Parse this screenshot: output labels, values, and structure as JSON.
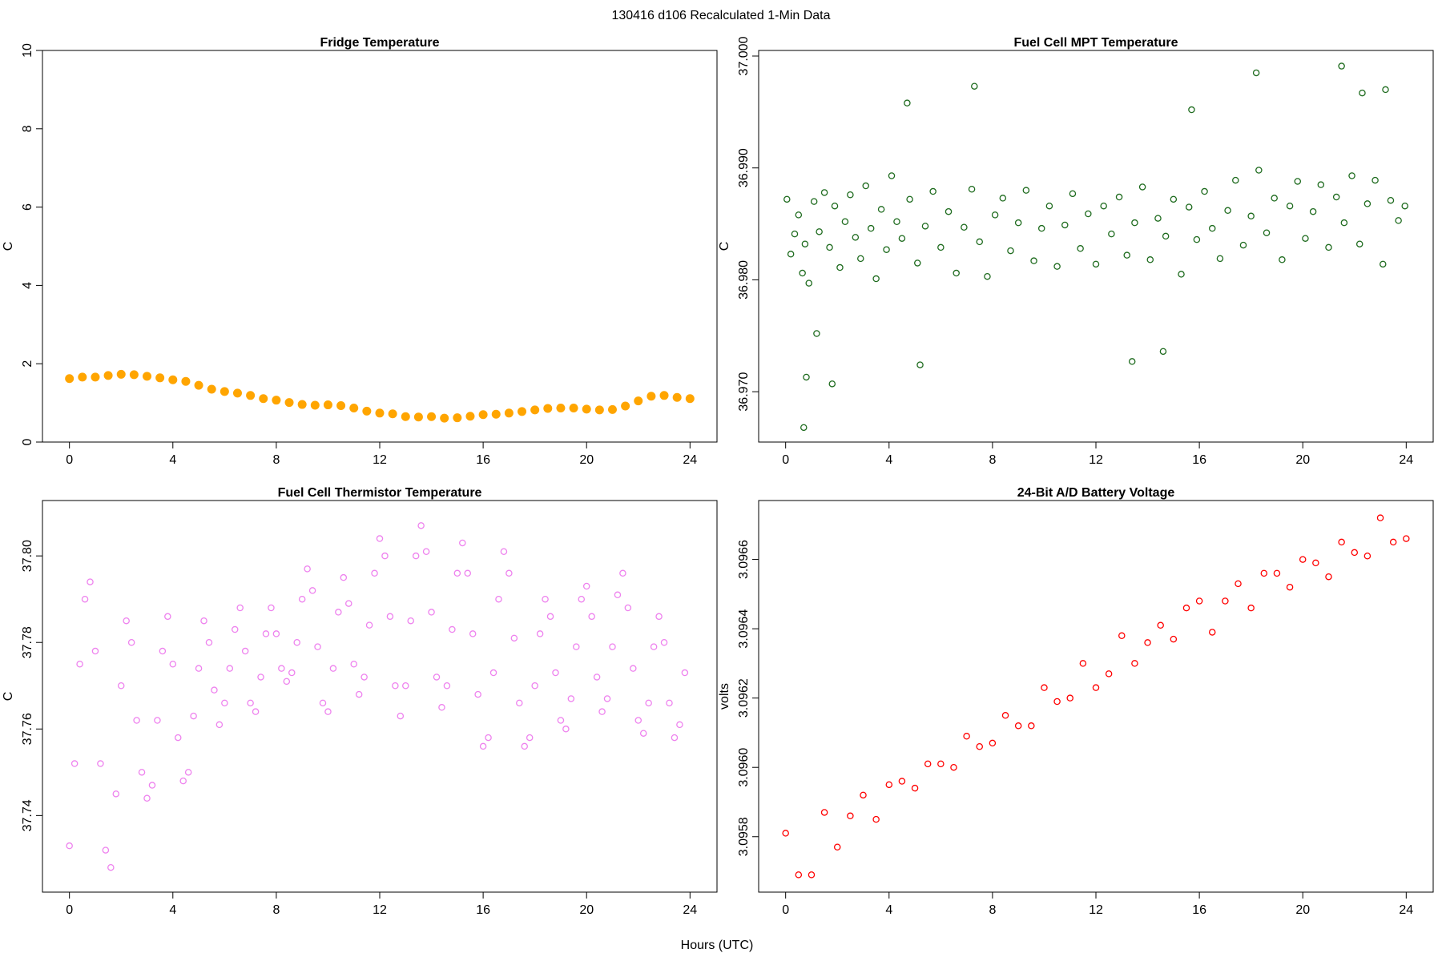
{
  "figure": {
    "title": "130416   d106   Recalculated 1-Min Data",
    "xlabel": "Hours (UTC)"
  },
  "chart_data": [
    {
      "type": "scatter",
      "title": "Fridge Temperature",
      "xlabel": "",
      "ylabel": "C",
      "xlim": [
        0,
        24
      ],
      "ylim": [
        0,
        10
      ],
      "xticks": [
        0,
        4,
        8,
        12,
        16,
        20,
        24
      ],
      "yticks": [
        0,
        2,
        4,
        6,
        8,
        10
      ],
      "yticklabels": [
        "0",
        "2",
        "4",
        "6",
        "8",
        "10"
      ],
      "color": "#FFA500",
      "marker": "filled",
      "series": [
        {
          "x": [
            0,
            0.5,
            1,
            1.5,
            2,
            2.5,
            3,
            3.5,
            4,
            4.5,
            5,
            5.5,
            6,
            6.5,
            7,
            7.5,
            8,
            8.5,
            9,
            9.5,
            10,
            10.5,
            11,
            11.5,
            12,
            12.5,
            13,
            13.5,
            14,
            14.5,
            15,
            15.5,
            16,
            16.5,
            17,
            17.5,
            18,
            18.5,
            19,
            19.5,
            20,
            20.5,
            21,
            21.5,
            22,
            22.5,
            23,
            23.5,
            24
          ],
          "y": [
            1.62,
            1.66,
            1.66,
            1.7,
            1.73,
            1.72,
            1.68,
            1.64,
            1.59,
            1.55,
            1.45,
            1.35,
            1.29,
            1.25,
            1.19,
            1.11,
            1.07,
            1.01,
            0.96,
            0.94,
            0.95,
            0.93,
            0.87,
            0.79,
            0.74,
            0.72,
            0.65,
            0.64,
            0.65,
            0.61,
            0.62,
            0.66,
            0.7,
            0.71,
            0.74,
            0.78,
            0.82,
            0.86,
            0.87,
            0.87,
            0.84,
            0.82,
            0.83,
            0.92,
            1.05,
            1.17,
            1.19,
            1.14,
            1.11
          ]
        }
      ]
    },
    {
      "type": "scatter",
      "title": "Fuel Cell MPT Temperature",
      "xlabel": "",
      "ylabel": "C",
      "xlim": [
        0,
        24
      ],
      "ylim": [
        36.9655,
        37.0005
      ],
      "xticks": [
        0,
        4,
        8,
        12,
        16,
        20,
        24
      ],
      "yticks": [
        36.97,
        36.98,
        36.99,
        37.0
      ],
      "yticklabels": [
        "36.970",
        "36.980",
        "36.990",
        "37.000"
      ],
      "color": "#1E6B1E",
      "marker": "open",
      "series": [
        {
          "x": [
            0.05,
            0.2,
            0.35,
            0.5,
            0.65,
            0.75,
            0.9,
            1.1,
            1.3,
            1.5,
            1.7,
            1.9,
            2.1,
            2.3,
            2.5,
            2.7,
            2.9,
            3.1,
            3.3,
            3.5,
            3.7,
            3.9,
            4.1,
            4.3,
            4.5,
            4.8,
            5.1,
            5.4,
            5.7,
            6.0,
            6.3,
            6.6,
            6.9,
            7.2,
            7.5,
            7.8,
            8.1,
            8.4,
            8.7,
            9.0,
            9.3,
            9.6,
            9.9,
            10.2,
            10.5,
            10.8,
            11.1,
            11.4,
            11.7,
            12.0,
            12.3,
            12.6,
            12.9,
            13.2,
            13.5,
            13.8,
            14.1,
            14.4,
            14.7,
            15.0,
            15.3,
            15.6,
            15.9,
            16.2,
            16.5,
            16.8,
            17.1,
            17.4,
            17.7,
            18.0,
            18.3,
            18.6,
            18.9,
            19.2,
            19.5,
            19.8,
            20.1,
            20.4,
            20.7,
            21.0,
            21.3,
            21.6,
            21.9,
            22.2,
            22.5,
            22.8,
            23.1,
            23.4,
            23.7,
            23.95,
            0.7,
            0.8,
            1.2,
            1.8,
            4.7,
            5.2,
            7.3,
            13.4,
            14.6,
            15.7,
            18.2,
            21.5,
            22.3,
            23.2
          ],
          "y": [
            36.9872,
            36.9823,
            36.9841,
            36.9858,
            36.9806,
            36.9832,
            36.9797,
            36.987,
            36.9843,
            36.9878,
            36.9829,
            36.9866,
            36.9811,
            36.9852,
            36.9876,
            36.9838,
            36.9819,
            36.9884,
            36.9846,
            36.9801,
            36.9863,
            36.9827,
            36.9893,
            36.9852,
            36.9837,
            36.9872,
            36.9815,
            36.9848,
            36.9879,
            36.9829,
            36.9861,
            36.9806,
            36.9847,
            36.9881,
            36.9834,
            36.9803,
            36.9858,
            36.9873,
            36.9826,
            36.9851,
            36.988,
            36.9817,
            36.9846,
            36.9866,
            36.9812,
            36.9849,
            36.9877,
            36.9828,
            36.9859,
            36.9814,
            36.9866,
            36.9841,
            36.9874,
            36.9822,
            36.9851,
            36.9883,
            36.9818,
            36.9855,
            36.9839,
            36.9872,
            36.9805,
            36.9865,
            36.9836,
            36.9879,
            36.9846,
            36.9819,
            36.9862,
            36.9889,
            36.9831,
            36.9857,
            36.9898,
            36.9842,
            36.9873,
            36.9818,
            36.9866,
            36.9888,
            36.9837,
            36.9861,
            36.9885,
            36.9829,
            36.9874,
            36.9851,
            36.9893,
            36.9832,
            36.9868,
            36.9889,
            36.9814,
            36.9871,
            36.9853,
            36.9866,
            36.9668,
            36.9713,
            36.9752,
            36.9707,
            36.9958,
            36.9724,
            36.9973,
            36.9727,
            36.9736,
            36.9952,
            36.9985,
            36.9991,
            36.9967,
            36.997
          ]
        }
      ]
    },
    {
      "type": "scatter",
      "title": "Fuel Cell Thermistor Temperature",
      "xlabel": "",
      "ylabel": "C",
      "xlim": [
        0,
        24
      ],
      "ylim": [
        37.7223,
        37.8128
      ],
      "xticks": [
        0,
        4,
        8,
        12,
        16,
        20,
        24
      ],
      "yticks": [
        37.74,
        37.76,
        37.78,
        37.8
      ],
      "yticklabels": [
        "37.74",
        "37.76",
        "37.78",
        "37.80"
      ],
      "color": "#EE82EE",
      "marker": "open",
      "series": [
        {
          "x": [
            0.0,
            0.2,
            0.4,
            0.6,
            0.8,
            1.0,
            1.2,
            1.4,
            1.6,
            1.8,
            2.0,
            2.2,
            2.4,
            2.6,
            2.8,
            3.0,
            3.2,
            3.4,
            3.6,
            3.8,
            4.0,
            4.2,
            4.4,
            4.6,
            4.8,
            5.0,
            5.2,
            5.4,
            5.6,
            5.8,
            6.0,
            6.2,
            6.4,
            6.6,
            6.8,
            7.0,
            7.2,
            7.4,
            7.6,
            7.8,
            8.0,
            8.2,
            8.4,
            8.6,
            8.8,
            9.0,
            9.2,
            9.4,
            9.6,
            9.8,
            10.0,
            10.2,
            10.4,
            10.6,
            10.8,
            11.0,
            11.2,
            11.4,
            11.6,
            11.8,
            12.0,
            12.2,
            12.4,
            12.6,
            12.8,
            13.0,
            13.2,
            13.4,
            13.6,
            13.8,
            14.0,
            14.2,
            14.4,
            14.6,
            14.8,
            15.0,
            15.2,
            15.4,
            15.6,
            15.8,
            16.0,
            16.2,
            16.4,
            16.6,
            16.8,
            17.0,
            17.2,
            17.4,
            17.6,
            17.8,
            18.0,
            18.2,
            18.4,
            18.6,
            18.8,
            19.0,
            19.2,
            19.4,
            19.6,
            19.8,
            20.0,
            20.2,
            20.4,
            20.6,
            20.8,
            21.0,
            21.2,
            21.4,
            21.6,
            21.8,
            22.0,
            22.2,
            22.4,
            22.6,
            22.8,
            23.0,
            23.2,
            23.4,
            23.6,
            23.8
          ],
          "y": [
            37.733,
            37.752,
            37.775,
            37.79,
            37.794,
            37.778,
            37.752,
            37.732,
            37.728,
            37.745,
            37.77,
            37.785,
            37.78,
            37.762,
            37.75,
            37.744,
            37.747,
            37.762,
            37.778,
            37.786,
            37.775,
            37.758,
            37.748,
            37.75,
            37.763,
            37.774,
            37.785,
            37.78,
            37.769,
            37.761,
            37.766,
            37.774,
            37.783,
            37.788,
            37.778,
            37.766,
            37.764,
            37.772,
            37.782,
            37.788,
            37.782,
            37.774,
            37.771,
            37.773,
            37.78,
            37.79,
            37.797,
            37.792,
            37.779,
            37.766,
            37.764,
            37.774,
            37.787,
            37.795,
            37.789,
            37.775,
            37.768,
            37.772,
            37.784,
            37.796,
            37.804,
            37.8,
            37.786,
            37.77,
            37.763,
            37.77,
            37.785,
            37.8,
            37.807,
            37.801,
            37.787,
            37.772,
            37.765,
            37.77,
            37.783,
            37.796,
            37.803,
            37.796,
            37.782,
            37.768,
            37.756,
            37.758,
            37.773,
            37.79,
            37.801,
            37.796,
            37.781,
            37.766,
            37.756,
            37.758,
            37.77,
            37.782,
            37.79,
            37.786,
            37.773,
            37.762,
            37.76,
            37.767,
            37.779,
            37.79,
            37.793,
            37.786,
            37.772,
            37.764,
            37.767,
            37.779,
            37.791,
            37.796,
            37.788,
            37.774,
            37.762,
            37.759,
            37.766,
            37.779,
            37.786,
            37.78,
            37.766,
            37.758,
            37.761,
            37.773
          ]
        }
      ]
    },
    {
      "type": "scatter",
      "title": "24-Bit A/D Battery Voltage",
      "xlabel": "",
      "ylabel": "volts",
      "xlim": [
        0,
        24
      ],
      "ylim": [
        3.09564,
        3.09677
      ],
      "xticks": [
        0,
        4,
        8,
        12,
        16,
        20,
        24
      ],
      "yticks": [
        3.0958,
        3.096,
        3.0962,
        3.0964,
        3.0966
      ],
      "yticklabels": [
        "3.0958",
        "3.0960",
        "3.0962",
        "3.0964",
        "3.0966"
      ],
      "color": "#FF0000",
      "marker": "open",
      "series": [
        {
          "x": [
            0.0,
            0.5,
            1.0,
            1.5,
            2.0,
            2.5,
            3.0,
            3.5,
            4.0,
            4.5,
            5.0,
            5.5,
            6.0,
            6.5,
            7.0,
            7.5,
            8.0,
            8.5,
            9.0,
            9.5,
            10.0,
            10.5,
            11.0,
            11.5,
            12.0,
            12.5,
            13.0,
            13.5,
            14.0,
            14.5,
            15.0,
            15.5,
            16.0,
            16.5,
            17.0,
            17.5,
            18.0,
            18.5,
            19.0,
            19.5,
            20.0,
            20.5,
            21.0,
            21.5,
            22.0,
            22.5,
            23.0,
            23.5,
            24.0
          ],
          "y": [
            3.09581,
            3.09569,
            3.09569,
            3.09587,
            3.09577,
            3.09586,
            3.09592,
            3.09585,
            3.09595,
            3.09596,
            3.09594,
            3.09601,
            3.09601,
            3.096,
            3.09609,
            3.09606,
            3.09607,
            3.09615,
            3.09612,
            3.09612,
            3.09623,
            3.09619,
            3.0962,
            3.0963,
            3.09623,
            3.09627,
            3.09638,
            3.0963,
            3.09636,
            3.09641,
            3.09637,
            3.09646,
            3.09648,
            3.09639,
            3.09648,
            3.09653,
            3.09646,
            3.09656,
            3.09656,
            3.09652,
            3.0966,
            3.09659,
            3.09655,
            3.09665,
            3.09662,
            3.09661,
            3.09672,
            3.09665,
            3.09666
          ]
        }
      ]
    }
  ]
}
